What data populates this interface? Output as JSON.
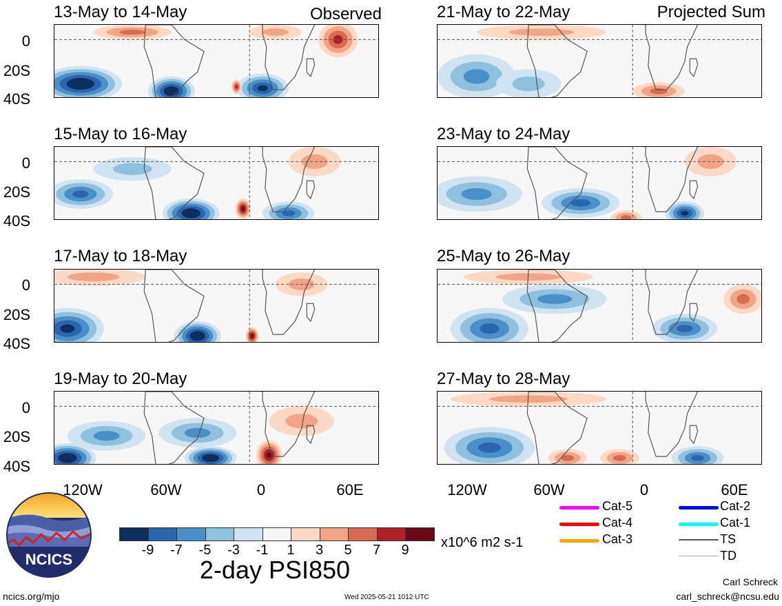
{
  "panels_left": [
    {
      "title": "13-May to 14-May",
      "tag": "Observed"
    },
    {
      "title": "15-May to 16-May",
      "tag": ""
    },
    {
      "title": "17-May to 18-May",
      "tag": ""
    },
    {
      "title": "19-May to 20-May",
      "tag": ""
    }
  ],
  "panels_right": [
    {
      "title": "21-May to 22-May",
      "tag": "Projected Sum"
    },
    {
      "title": "23-May to 24-May",
      "tag": ""
    },
    {
      "title": "25-May to 26-May",
      "tag": ""
    },
    {
      "title": "27-May to 28-May",
      "tag": ""
    }
  ],
  "y_ticks": [
    "0",
    "20S",
    "40S"
  ],
  "x_ticks": [
    "120W",
    "60W",
    "0",
    "60E"
  ],
  "colorbar": {
    "colors": [
      "#0b2f5e",
      "#2b65ae",
      "#4a8fc8",
      "#8fc0de",
      "#cfe3f0",
      "#f7f7f7",
      "#fbd9c4",
      "#f2a487",
      "#d76a52",
      "#b02028",
      "#6a0818"
    ],
    "labels": [
      "-9",
      "-7",
      "-5",
      "-3",
      "-1",
      "1",
      "3",
      "5",
      "7",
      "9"
    ],
    "units": "x10^6 m2 s-1",
    "title": "2-day PSI850"
  },
  "legend": [
    {
      "label": "Cat-5",
      "color": "#ff00ff"
    },
    {
      "label": "Cat-4",
      "color": "#ff0000"
    },
    {
      "label": "Cat-3",
      "color": "#ffa500"
    },
    {
      "label": "Cat-2",
      "color": "#0000ff"
    },
    {
      "label": "Cat-1",
      "color": "#00ffff"
    },
    {
      "label": "TS",
      "color": "#555555"
    },
    {
      "label": "TD",
      "color": "#aaaaaa"
    }
  ],
  "logo_text": "NCICS",
  "footer": {
    "left": "ncics.org/mjo",
    "center": "Wed 2025-05-21 1012 UTC",
    "author": "Carl Schreck",
    "email": "carl_schreck@ncsu.edu"
  }
}
